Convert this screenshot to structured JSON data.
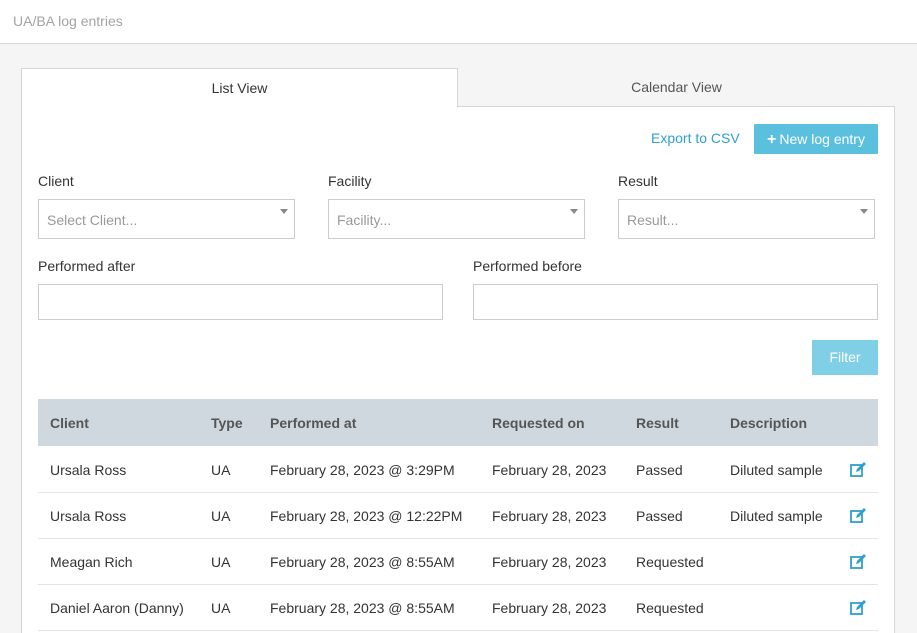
{
  "header": {
    "title": "UA/BA log entries"
  },
  "tabs": {
    "list": "List View",
    "calendar": "Calendar View"
  },
  "actions": {
    "export": "Export to CSV",
    "new_entry": "New log entry"
  },
  "filters": {
    "client_label": "Client",
    "client_placeholder": "Select Client...",
    "facility_label": "Facility",
    "facility_placeholder": "Facility...",
    "result_label": "Result",
    "result_placeholder": "Result...",
    "after_label": "Performed after",
    "before_label": "Performed before",
    "filter_button": "Filter"
  },
  "table": {
    "headers": [
      "Client",
      "Type",
      "Performed at",
      "Requested on",
      "Result",
      "Description"
    ],
    "rows": [
      {
        "client": "Ursala Ross",
        "type": "UA",
        "performed_at": "February 28, 2023 @ 3:29PM",
        "requested_on": "February 28, 2023",
        "result": "Passed",
        "description": "Diluted sample"
      },
      {
        "client": "Ursala Ross",
        "type": "UA",
        "performed_at": "February 28, 2023 @ 12:22PM",
        "requested_on": "February 28, 2023",
        "result": "Passed",
        "description": "Diluted sample"
      },
      {
        "client": "Meagan Rich",
        "type": "UA",
        "performed_at": "February 28, 2023 @ 8:55AM",
        "requested_on": "February 28, 2023",
        "result": "Requested",
        "description": ""
      },
      {
        "client": "Daniel Aaron (Danny)",
        "type": "UA",
        "performed_at": "February 28, 2023 @ 8:55AM",
        "requested_on": "February 28, 2023",
        "result": "Requested",
        "description": ""
      }
    ]
  },
  "colors": {
    "accent": "#2f9fcf",
    "button": "#5bc0de",
    "table_header": "#d0d8df"
  },
  "icons": {
    "edit": "edit-icon",
    "plus": "plus-icon",
    "caret": "chevron-down-icon"
  }
}
